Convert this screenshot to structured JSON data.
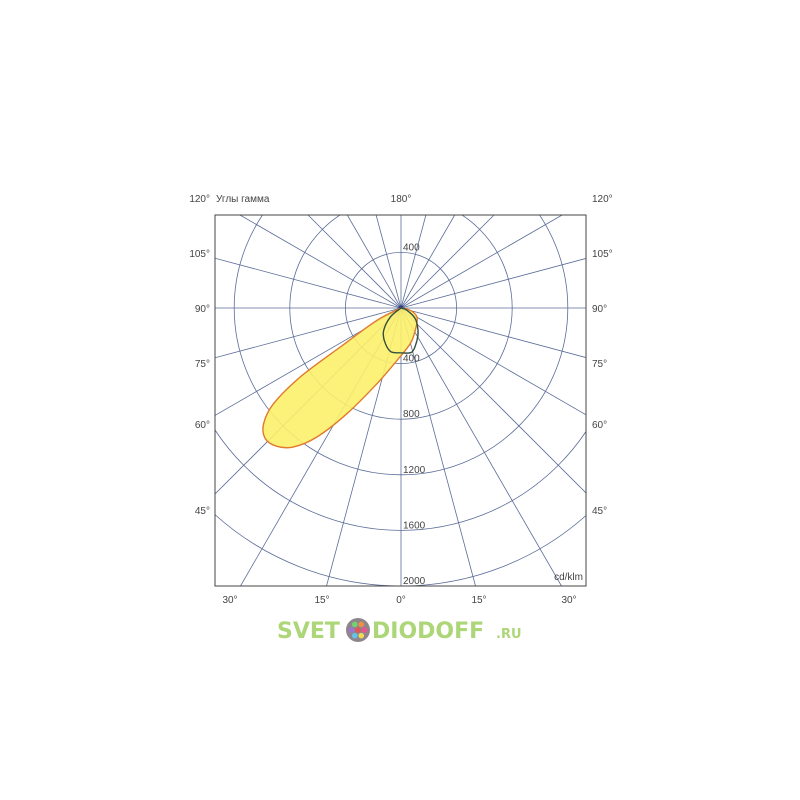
{
  "chart_data": {
    "type": "polar",
    "title": "Углы гамма",
    "unit_label": "cd/klm",
    "top_angle_label": "180°",
    "radial_ticks": [
      400,
      800,
      1200,
      1600,
      2000
    ],
    "radial_tick_labels_top": [
      "400"
    ],
    "radial_tick_labels_bottom": [
      "400",
      "800",
      "1200",
      "1600",
      "2000"
    ],
    "rmax": 2000,
    "angle_step_deg": 15,
    "side_angle_labels": [
      "120°",
      "105°",
      "90°",
      "75°",
      "60°",
      "45°"
    ],
    "bottom_angle_labels": [
      "30°",
      "15°",
      "0°",
      "15°",
      "30°"
    ],
    "grid": true,
    "series": [
      {
        "plane": "yellow",
        "fill": "#fcf06a",
        "stroke": "#e07a2c",
        "gamma": [
          -70,
          -62.9,
          -57.3,
          -55.6,
          -53.1,
          -49.9,
          -46.1,
          -41.9,
          -37.7,
          -33.1,
          -27.1,
          -17.6,
          -4.4,
          14.6,
          32.7,
          60.6,
          76,
          85
        ],
        "intensity": [
          0,
          194,
          519,
          878,
          1146,
          1292,
          1355,
          1337,
          1263,
          1108,
          854,
          571,
          378,
          265,
          191,
          132,
          69,
          0
        ]
      },
      {
        "plane": "green",
        "fill": "none",
        "stroke": "#34503e",
        "gamma": [
          -80,
          -50,
          -37.8,
          -27.3,
          -13.9,
          -0.9,
          14,
          26.3,
          37.3,
          53,
          69,
          85
        ],
        "intensity": [
          0,
          100,
          203,
          262,
          321,
          322,
          326,
          259,
          202,
          129,
          46,
          0
        ]
      }
    ]
  },
  "watermark": {
    "text_left": "SVET",
    "text_right": "DIODOFF",
    "suffix": ".RU",
    "color": "#9fd062",
    "logo_dot_colors": [
      "#e94b8a",
      "#f1d84a",
      "#5cc0e8",
      "#9a6cd0",
      "#6fce6a",
      "#f08a3c",
      "#e04c4c"
    ]
  }
}
